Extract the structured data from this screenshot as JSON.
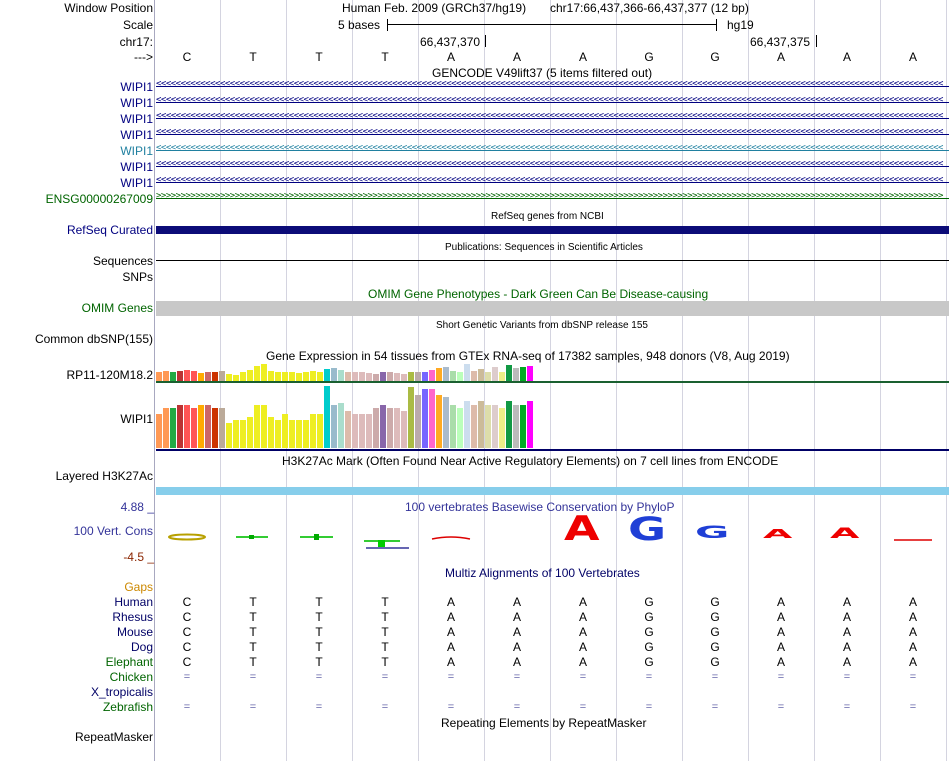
{
  "header": {
    "window_position_label": "Window Position",
    "scale_label": "Scale",
    "chrom_label": "chr17:",
    "arrow_label": "--->",
    "assembly": "Human Feb. 2009 (GRCh37/hg19)",
    "position": "chr17:66,437,366-66,437,377 (12 bp)",
    "scale_text": "5 bases",
    "scale_db": "hg19",
    "coord1": "66,437,370",
    "coord2": "66,437,375"
  },
  "sequence": [
    "C",
    "T",
    "T",
    "T",
    "A",
    "A",
    "A",
    "G",
    "G",
    "A",
    "A",
    "A"
  ],
  "gencode": {
    "title": "GENCODE V49lift37 (5 items filtered out)",
    "items": [
      "WIPI1",
      "WIPI1",
      "WIPI1",
      "WIPI1",
      "WIPI1",
      "WIPI1",
      "WIPI1",
      "ENSG00000267009"
    ]
  },
  "refseq": {
    "title": "RefSeq genes from NCBI",
    "label": "RefSeq Curated"
  },
  "publications": {
    "title": "Publications: Sequences in Scientific Articles",
    "label": "Sequences"
  },
  "snps": {
    "label": "SNPs"
  },
  "omim": {
    "title": "OMIM Gene Phenotypes - Dark Green Can Be Disease-causing",
    "label": "OMIM Genes"
  },
  "dbsnp": {
    "title": "Short Genetic Variants from dbSNP release 155",
    "label": "Common dbSNP(155)"
  },
  "gtex": {
    "title": "Gene Expression in 54 tissues from GTEx RNA-seq of 17382 samples, 948 donors (V8, Aug 2019)",
    "genes": [
      "RP11-120M18.2",
      "WIPI1"
    ],
    "colors": [
      "#ff9955",
      "#ff9955",
      "#22aa44",
      "#bb3333",
      "#ff5555",
      "#ff5555",
      "#ffaa00",
      "#cc6666",
      "#cc3300",
      "#bbaa99",
      "#eeee22",
      "#eeee22",
      "#eeee22",
      "#eeee22",
      "#eeee22",
      "#eeee22",
      "#eeee22",
      "#eeee22",
      "#eeee22",
      "#eeee22",
      "#eeee22",
      "#eeee22",
      "#eeee22",
      "#eeee22",
      "#00cccc",
      "#99bbcc",
      "#aaddcc",
      "#ddbbaa",
      "#ddbbbb",
      "#ddbbbb",
      "#ddbbbb",
      "#ccaaaa",
      "#8866aa",
      "#ccaaaa",
      "#ddbbbb",
      "#ddbbbb",
      "#aabb44",
      "#bbaaaa",
      "#7766ff",
      "#ff66cc",
      "#ffaa22",
      "#aabbcc",
      "#aaddaa",
      "#bbffbb",
      "#ccddee",
      "#ddbbaa",
      "#ccbb99",
      "#ddddaa",
      "#ddcccc",
      "#eeee88",
      "#119944",
      "#bbbbbb",
      "#00aa22",
      "#ff00ff"
    ],
    "values_rp11": [
      0.55,
      0.6,
      0.55,
      0.6,
      0.65,
      0.6,
      0.45,
      0.55,
      0.5,
      0.6,
      0.4,
      0.35,
      0.5,
      0.65,
      0.9,
      1.0,
      0.6,
      0.55,
      0.55,
      0.5,
      0.45,
      0.55,
      0.6,
      0.55,
      0.7,
      0.75,
      0.65,
      0.55,
      0.5,
      0.55,
      0.45,
      0.4,
      0.5,
      0.55,
      0.45,
      0.4,
      0.5,
      0.55,
      0.55,
      0.65,
      0.75,
      0.8,
      0.6,
      0.55,
      1.0,
      0.6,
      0.7,
      0.55,
      0.85,
      0.55,
      0.95,
      0.75,
      0.8,
      0.9
    ],
    "values_wipi1": [
      0.55,
      0.65,
      0.65,
      0.7,
      0.7,
      0.65,
      0.7,
      0.7,
      0.65,
      0.65,
      0.4,
      0.45,
      0.45,
      0.5,
      0.7,
      0.7,
      0.5,
      0.45,
      0.55,
      0.45,
      0.45,
      0.45,
      0.55,
      0.55,
      1.0,
      0.7,
      0.72,
      0.6,
      0.55,
      0.55,
      0.55,
      0.65,
      0.7,
      0.65,
      0.65,
      0.6,
      0.98,
      0.85,
      0.95,
      0.95,
      0.85,
      0.82,
      0.7,
      0.65,
      0.75,
      0.7,
      0.75,
      0.7,
      0.7,
      0.65,
      0.75,
      0.7,
      0.7,
      0.75
    ]
  },
  "h3k27ac": {
    "title": "H3K27Ac Mark (Often Found Near Active Regulatory Elements) on 7 cell lines from ENCODE",
    "label": "Layered H3K27Ac"
  },
  "phylop": {
    "title": "100 vertebrates Basewise Conservation by PhyloP",
    "label": "100 Vert. Cons",
    "max": "4.88 _",
    "min": "-4.5 _"
  },
  "multiz": {
    "title": "Multiz Alignments of 100 Vertebrates",
    "gaps_label": "Gaps",
    "species": [
      {
        "name": "Human",
        "bases": [
          "C",
          "T",
          "T",
          "T",
          "A",
          "A",
          "A",
          "G",
          "G",
          "A",
          "A",
          "A"
        ]
      },
      {
        "name": "Rhesus",
        "bases": [
          "C",
          "T",
          "T",
          "T",
          "A",
          "A",
          "A",
          "G",
          "G",
          "A",
          "A",
          "A"
        ]
      },
      {
        "name": "Mouse",
        "bases": [
          "C",
          "T",
          "T",
          "T",
          "A",
          "A",
          "A",
          "G",
          "G",
          "A",
          "A",
          "A"
        ]
      },
      {
        "name": "Dog",
        "bases": [
          "C",
          "T",
          "T",
          "T",
          "A",
          "A",
          "A",
          "G",
          "G",
          "A",
          "A",
          "A"
        ]
      },
      {
        "name": "Elephant",
        "bases": [
          "C",
          "T",
          "T",
          "T",
          "A",
          "A",
          "A",
          "G",
          "G",
          "A",
          "A",
          "A"
        ]
      },
      {
        "name": "Chicken",
        "bases": [
          "=",
          "=",
          "=",
          "=",
          "=",
          "=",
          "=",
          "=",
          "=",
          "=",
          "=",
          "="
        ]
      },
      {
        "name": "X_tropicalis",
        "bases": [
          "",
          "",
          "",
          "",
          "",
          "",
          "",
          "",
          "",
          "",
          "",
          ""
        ]
      },
      {
        "name": "Zebrafish",
        "bases": [
          "=",
          "=",
          "=",
          "=",
          "=",
          "=",
          "=",
          "=",
          "=",
          "=",
          "=",
          "="
        ]
      }
    ]
  },
  "repeatmasker": {
    "title": "Repeating Elements by RepeatMasker",
    "label": "RepeatMasker"
  },
  "colors": {
    "gencode_blue": "#000080",
    "gencode_teal": "#2080a0",
    "ensg_green": "#006400",
    "refseq": "#0c0c78",
    "omim": "#c8c8c8",
    "h3k27ac": "#87ceeb",
    "phylop_title": "#333399",
    "multiz_title": "#000066",
    "gaps": "#cc8800",
    "species_label": "#000066",
    "elephant_label": "#006400"
  }
}
